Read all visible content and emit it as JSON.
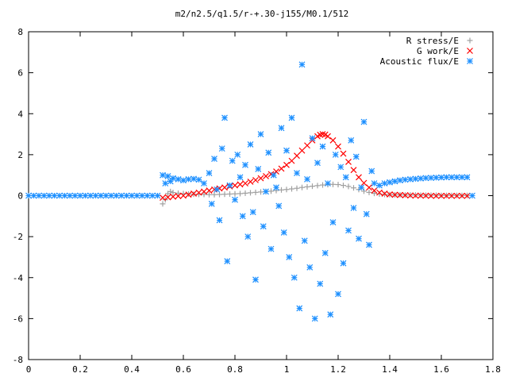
{
  "chart_data": {
    "type": "scatter",
    "title": "m2/n2.5/q1.5/r-+.30-j155/M0.1/512",
    "xlabel": "",
    "ylabel": "",
    "xlim": [
      0,
      1.8
    ],
    "ylim": [
      -8,
      8
    ],
    "x_ticks": [
      "0",
      "0.2",
      "0.4",
      "0.6",
      "0.8",
      "1",
      "1.2",
      "1.4",
      "1.6",
      "1.8"
    ],
    "y_ticks": [
      "-8",
      "-6",
      "-4",
      "-2",
      "0",
      "2",
      "4",
      "6",
      "8"
    ],
    "grid": false,
    "legend_position": "top-right",
    "series": [
      {
        "name": "R stress/E",
        "marker": "plus",
        "color": "#a0a0a0",
        "x": [
          0.52,
          0.53,
          0.54,
          0.55,
          0.56,
          0.58,
          0.6,
          0.62,
          0.64,
          0.66,
          0.68,
          0.7,
          0.72,
          0.74,
          0.76,
          0.78,
          0.8,
          0.82,
          0.84,
          0.86,
          0.88,
          0.9,
          0.92,
          0.94,
          0.96,
          0.98,
          1.0,
          1.02,
          1.04,
          1.06,
          1.08,
          1.1,
          1.12,
          1.14,
          1.16,
          1.18,
          1.2,
          1.22,
          1.24,
          1.26,
          1.28,
          1.3,
          1.32,
          1.34,
          1.36,
          1.38,
          1.4,
          1.42,
          1.44,
          1.46,
          1.48,
          1.5,
          1.52,
          1.54,
          1.56,
          1.58,
          1.6,
          1.62,
          1.64,
          1.66,
          1.68,
          1.7
        ],
        "y": [
          -0.4,
          -0.2,
          0.1,
          0.2,
          0.15,
          0.12,
          0.1,
          0.08,
          0.07,
          0.06,
          0.06,
          0.05,
          0.05,
          0.06,
          0.07,
          0.08,
          0.09,
          0.1,
          0.12,
          0.14,
          0.16,
          0.18,
          0.2,
          0.22,
          0.25,
          0.28,
          0.3,
          0.33,
          0.36,
          0.4,
          0.43,
          0.46,
          0.49,
          0.52,
          0.54,
          0.55,
          0.54,
          0.5,
          0.45,
          0.38,
          0.3,
          0.22,
          0.16,
          0.11,
          0.08,
          0.06,
          0.05,
          0.04,
          0.04,
          0.03,
          0.03,
          0.03,
          0.02,
          0.02,
          0.02,
          0.02,
          0.01,
          0.01,
          0.01,
          0.01,
          0.01,
          0.01
        ]
      },
      {
        "name": "G work/E",
        "marker": "cross",
        "color": "#ff0000",
        "x": [
          0.52,
          0.54,
          0.56,
          0.58,
          0.6,
          0.62,
          0.64,
          0.66,
          0.68,
          0.7,
          0.72,
          0.74,
          0.76,
          0.78,
          0.8,
          0.82,
          0.84,
          0.86,
          0.88,
          0.9,
          0.92,
          0.94,
          0.96,
          0.98,
          1.0,
          1.02,
          1.04,
          1.06,
          1.08,
          1.1,
          1.12,
          1.13,
          1.14,
          1.15,
          1.16,
          1.18,
          1.2,
          1.22,
          1.24,
          1.26,
          1.28,
          1.3,
          1.32,
          1.34,
          1.36,
          1.38,
          1.4,
          1.42,
          1.44,
          1.46,
          1.48,
          1.5,
          1.52,
          1.54,
          1.56,
          1.58,
          1.6,
          1.62,
          1.64,
          1.66,
          1.68,
          1.7
        ],
        "y": [
          -0.1,
          -0.08,
          -0.05,
          -0.02,
          0.0,
          0.05,
          0.1,
          0.15,
          0.2,
          0.25,
          0.3,
          0.35,
          0.4,
          0.45,
          0.5,
          0.55,
          0.6,
          0.68,
          0.76,
          0.85,
          0.95,
          1.05,
          1.18,
          1.32,
          1.5,
          1.7,
          1.95,
          2.2,
          2.45,
          2.7,
          2.9,
          2.97,
          3.0,
          2.98,
          2.9,
          2.7,
          2.4,
          2.05,
          1.65,
          1.25,
          0.9,
          0.62,
          0.4,
          0.25,
          0.15,
          0.1,
          0.06,
          0.04,
          0.03,
          0.02,
          0.01,
          0.0,
          0.0,
          0.0,
          -0.01,
          -0.01,
          -0.01,
          -0.01,
          -0.01,
          -0.01,
          -0.01,
          -0.01
        ]
      },
      {
        "name": "Acoustic flux/E",
        "marker": "star",
        "color": "#1e90ff",
        "x": [
          0.0,
          0.02,
          0.04,
          0.06,
          0.08,
          0.1,
          0.12,
          0.14,
          0.16,
          0.18,
          0.2,
          0.22,
          0.24,
          0.26,
          0.28,
          0.3,
          0.32,
          0.34,
          0.36,
          0.38,
          0.4,
          0.42,
          0.44,
          0.46,
          0.48,
          0.5,
          0.52,
          0.53,
          0.54,
          0.55,
          0.56,
          0.58,
          0.6,
          0.62,
          0.64,
          0.66,
          0.68,
          0.7,
          0.71,
          0.72,
          0.73,
          0.74,
          0.75,
          0.76,
          0.77,
          0.78,
          0.79,
          0.8,
          0.81,
          0.82,
          0.83,
          0.84,
          0.85,
          0.86,
          0.87,
          0.88,
          0.89,
          0.9,
          0.91,
          0.92,
          0.93,
          0.94,
          0.95,
          0.96,
          0.97,
          0.98,
          0.99,
          1.0,
          1.01,
          1.02,
          1.03,
          1.04,
          1.05,
          1.06,
          1.07,
          1.08,
          1.09,
          1.1,
          1.11,
          1.12,
          1.13,
          1.14,
          1.15,
          1.16,
          1.17,
          1.18,
          1.19,
          1.2,
          1.21,
          1.22,
          1.23,
          1.24,
          1.25,
          1.26,
          1.27,
          1.28,
          1.29,
          1.3,
          1.31,
          1.32,
          1.33,
          1.34,
          1.36,
          1.38,
          1.4,
          1.42,
          1.44,
          1.46,
          1.48,
          1.5,
          1.52,
          1.54,
          1.56,
          1.58,
          1.6,
          1.62,
          1.64,
          1.66,
          1.68,
          1.7,
          1.72
        ],
        "y": [
          0.0,
          0.0,
          0.0,
          0.0,
          0.0,
          0.0,
          0.0,
          0.0,
          0.0,
          0.0,
          0.0,
          0.0,
          0.0,
          0.0,
          0.0,
          0.0,
          0.0,
          0.0,
          0.0,
          0.0,
          0.0,
          0.0,
          0.0,
          0.0,
          0.0,
          0.0,
          1.0,
          0.6,
          0.95,
          0.7,
          0.85,
          0.8,
          0.75,
          0.8,
          0.82,
          0.78,
          0.6,
          1.1,
          -0.4,
          1.8,
          0.3,
          -1.2,
          2.3,
          3.8,
          -3.2,
          0.5,
          1.7,
          -0.2,
          2.0,
          0.9,
          -1.0,
          1.5,
          -2.0,
          2.5,
          -0.8,
          -4.1,
          1.3,
          3.0,
          -1.5,
          0.2,
          2.1,
          -2.6,
          1.0,
          0.4,
          -0.5,
          3.3,
          -1.8,
          2.2,
          -3.0,
          3.8,
          -4.0,
          1.1,
          -5.5,
          6.4,
          -2.2,
          0.8,
          -3.5,
          2.8,
          -6.0,
          1.6,
          -4.3,
          2.4,
          -2.8,
          0.6,
          -5.8,
          -1.3,
          2.0,
          -4.8,
          1.4,
          -3.3,
          0.9,
          -1.7,
          2.7,
          -0.6,
          1.9,
          -2.1,
          0.4,
          3.6,
          -0.9,
          -2.4,
          1.2,
          0.6,
          0.5,
          0.6,
          0.65,
          0.7,
          0.75,
          0.78,
          0.8,
          0.82,
          0.84,
          0.86,
          0.87,
          0.88,
          0.89,
          0.9,
          0.9,
          0.9,
          0.9,
          0.9,
          0.0
        ]
      }
    ]
  }
}
